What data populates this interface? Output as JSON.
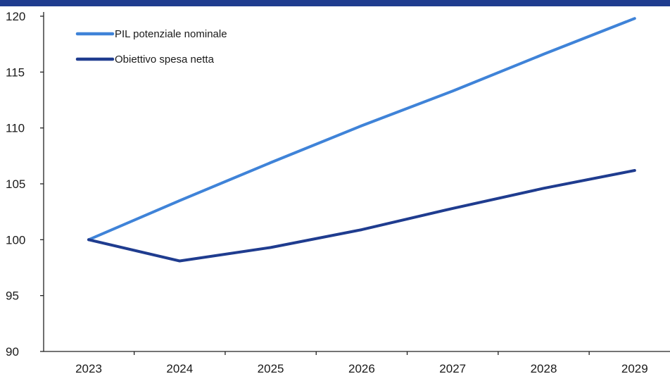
{
  "chart_data": {
    "type": "line",
    "title": "",
    "xlabel": "",
    "ylabel": "",
    "categories": [
      "2023",
      "2024",
      "2025",
      "2026",
      "2027",
      "2028",
      "2029"
    ],
    "x": [
      2023,
      2024,
      2025,
      2026,
      2027,
      2028,
      2029
    ],
    "ylim": [
      90,
      120
    ],
    "yticks": [
      90,
      95,
      100,
      105,
      110,
      115,
      120
    ],
    "grid": false,
    "legend_position": "top-left",
    "series": [
      {
        "name": "PIL potenziale nominale",
        "color": "#3f83d8",
        "values": [
          100,
          103.5,
          106.9,
          110.2,
          113.3,
          116.6,
          119.8
        ]
      },
      {
        "name": "Obiettivo spesa netta",
        "color": "#1f3c8f",
        "values": [
          100,
          98.1,
          99.3,
          100.9,
          102.8,
          104.6,
          106.2
        ]
      }
    ]
  },
  "colors": {
    "top_band": "#1f3c8f",
    "axis": "#222222"
  }
}
